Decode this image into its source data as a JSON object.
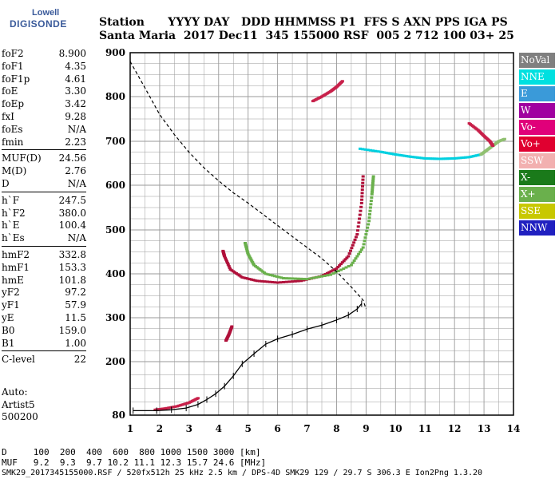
{
  "logo": {
    "top": "Lowell",
    "bottom": "DIGISONDE"
  },
  "header": {
    "labels_line": "Station      YYYY DAY   DDD HHMMSS P1  FFS S AXN PPS IGA PS",
    "values_line": "Santa Maria  2017 Dec11  345 155000 RSF  005 2 712 100 03+ 25"
  },
  "params": [
    {
      "label": "foF2",
      "value": "8.900"
    },
    {
      "label": "foF1",
      "value": "4.35"
    },
    {
      "label": "foF1p",
      "value": "4.61"
    },
    {
      "label": "foE",
      "value": "3.30"
    },
    {
      "label": "foEp",
      "value": "3.42"
    },
    {
      "label": "fxI",
      "value": "9.28"
    },
    {
      "label": "foEs",
      "value": "N/A"
    },
    {
      "label": "fmin",
      "value": "2.23"
    },
    {
      "label": "MUF(D)",
      "value": "24.56"
    },
    {
      "label": "M(D)",
      "value": "2.76"
    },
    {
      "label": "D",
      "value": "N/A"
    },
    {
      "label": "h`F",
      "value": "247.5"
    },
    {
      "label": "h`F2",
      "value": "380.0"
    },
    {
      "label": "h`E",
      "value": "100.4"
    },
    {
      "label": "h`Es",
      "value": "N/A"
    },
    {
      "label": "hmF2",
      "value": "332.8"
    },
    {
      "label": "hmF1",
      "value": "153.3"
    },
    {
      "label": "hmE",
      "value": "101.8"
    },
    {
      "label": "yF2",
      "value": "97.2"
    },
    {
      "label": "yF1",
      "value": "57.9"
    },
    {
      "label": "yE",
      "value": "11.5"
    },
    {
      "label": "B0",
      "value": "159.0"
    },
    {
      "label": "B1",
      "value": "1.00"
    },
    {
      "label": "C-level",
      "value": "22"
    }
  ],
  "autoscaler": {
    "line1": "Auto:",
    "line2": "Artist5",
    "line3": "500200"
  },
  "legend": [
    {
      "label": "NoVal",
      "color": "#808080"
    },
    {
      "label": "NNE",
      "color": "#00e0e0"
    },
    {
      "label": "E",
      "color": "#3a9ad9"
    },
    {
      "label": "W",
      "color": "#a000a0"
    },
    {
      "label": "Vo-",
      "color": "#e0007a"
    },
    {
      "label": "Vo+",
      "color": "#e00030"
    },
    {
      "label": "SSW",
      "color": "#f2b0b0"
    },
    {
      "label": "X-",
      "color": "#1a7a1a"
    },
    {
      "label": "X+",
      "color": "#6ab04c"
    },
    {
      "label": "SSE",
      "color": "#c8c800"
    },
    {
      "label": "NNW",
      "color": "#2020c0"
    }
  ],
  "bottom": {
    "d_line": "D     100  200  400  600  800 1000 1500 3000 [km]",
    "muf_line": "MUF   9.2  9.3  9.7 10.2 11.1 12.3 15.7 24.6 [MHz]",
    "footer": "SMK29_2017345155000.RSF / 520fx512h 25 kHz 2.5 km / DPS-4D SMK29 129 / 29.7 S 306.3 E Ion2Png 1.3.20"
  },
  "chart_data": {
    "type": "scatter",
    "xlim": [
      1,
      14
    ],
    "ylim": [
      80,
      900
    ],
    "x_ticks": [
      1,
      2,
      3,
      4,
      5,
      6,
      7,
      8,
      9,
      10,
      11,
      12,
      13,
      14
    ],
    "y_ticks": [
      80,
      200,
      300,
      400,
      500,
      600,
      700,
      800,
      900
    ],
    "grid": true,
    "series": [
      {
        "name": "Vo+",
        "color": "#b0103a",
        "x": [
          4.15,
          4.2,
          4.4,
          4.8,
          5.3,
          6.0,
          6.8,
          7.5,
          8.0,
          8.4,
          8.7,
          8.85,
          8.9
        ],
        "y": [
          452,
          440,
          410,
          392,
          384,
          380,
          384,
          395,
          412,
          440,
          490,
          560,
          620
        ]
      },
      {
        "name": "X+",
        "color": "#6ab04c",
        "x": [
          4.9,
          5.0,
          5.2,
          5.6,
          6.2,
          7.0,
          7.8,
          8.5,
          8.9,
          9.1,
          9.2,
          9.25
        ],
        "y": [
          470,
          445,
          420,
          400,
          390,
          388,
          398,
          420,
          460,
          520,
          580,
          620
        ]
      },
      {
        "name": "NNE",
        "color": "#00d0e0",
        "x": [
          8.8,
          9.5,
          10.0,
          10.5,
          11.0,
          11.5,
          12.0,
          12.5,
          12.9
        ],
        "y": [
          683,
          676,
          670,
          665,
          661,
          660,
          661,
          664,
          670
        ]
      },
      {
        "name": "X-",
        "color": "#90c070",
        "x": [
          12.9,
          13.1,
          13.3,
          13.5,
          13.7
        ],
        "y": [
          670,
          680,
          690,
          700,
          705
        ]
      },
      {
        "name": "Vo-",
        "color": "#c8204a",
        "x": [
          7.2,
          7.5,
          7.8,
          8.0,
          8.2
        ],
        "y": [
          790,
          800,
          812,
          822,
          835
        ]
      },
      {
        "name": "Vo-",
        "color": "#c8204a",
        "x": [
          12.5,
          12.8,
          13.0,
          13.2,
          13.3
        ],
        "y": [
          740,
          725,
          712,
          700,
          690
        ]
      },
      {
        "name": "Vo+",
        "color": "#b0103a",
        "x": [
          4.25,
          4.35,
          4.45
        ],
        "y": [
          248,
          262,
          280
        ]
      },
      {
        "name": "Vo-",
        "color": "#c8204a",
        "x": [
          1.85,
          2.2,
          2.6,
          3.0,
          3.3
        ],
        "y": [
          92,
          95,
          100,
          108,
          118
        ]
      }
    ],
    "profile": {
      "x": [
        1.1,
        1.9,
        2.4,
        2.9,
        3.3,
        3.6,
        3.9,
        4.2,
        4.5,
        4.8,
        5.2,
        5.6,
        6.0,
        6.5,
        7.0,
        7.5,
        8.0,
        8.4,
        8.7,
        8.85
      ],
      "y": [
        90,
        90,
        92,
        96,
        104,
        115,
        128,
        145,
        168,
        195,
        218,
        240,
        252,
        262,
        274,
        283,
        295,
        306,
        320,
        332
      ]
    },
    "virtual_height_model": {
      "x": [
        1.0,
        1.5,
        2.0,
        2.5,
        3.0,
        3.5,
        4.0,
        4.5,
        5.0,
        5.5,
        6.0,
        6.5,
        7.0,
        7.5,
        8.0,
        8.5,
        8.9,
        9.0
      ],
      "y": [
        880,
        820,
        760,
        715,
        675,
        640,
        610,
        583,
        560,
        535,
        510,
        485,
        460,
        435,
        405,
        370,
        340,
        320
      ]
    }
  }
}
